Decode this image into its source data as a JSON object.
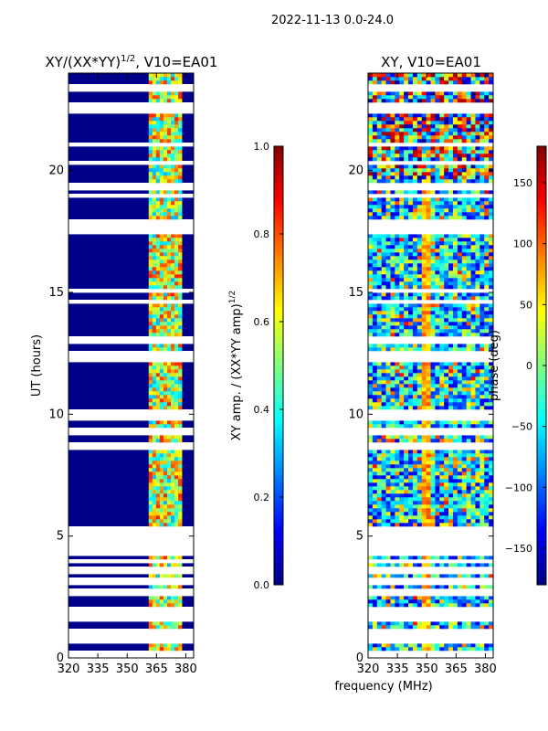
{
  "suptitle": "2022-11-13 0.0-24.0",
  "colors": {
    "jet": [
      "#00007f",
      "#0000ff",
      "#007fff",
      "#00ffff",
      "#7fff7f",
      "#ffff00",
      "#ff7f00",
      "#ff0000",
      "#7f0000"
    ],
    "gap": "#ffffff",
    "background": "#00008a"
  },
  "chart_data": [
    {
      "type": "heatmap",
      "title_main": "XY/(XX*YY)",
      "title_exp": "1/2",
      "title_tail": ", V10=EA01",
      "xlabel": "",
      "ylabel": "UT (hours)",
      "xlim": [
        320,
        384
      ],
      "ylim": [
        0,
        24
      ],
      "xticks": [
        320,
        335,
        350,
        365,
        380
      ],
      "yticks": [
        0,
        5,
        10,
        15,
        20
      ],
      "active_band_mhz": [
        361,
        378
      ],
      "colorbar": {
        "label_main": "XY amp. / (XX*YY amp)",
        "label_exp": "1/2",
        "range": [
          0,
          1
        ],
        "ticks": [
          "0.0",
          "0.2",
          "0.4",
          "0.6",
          "0.8",
          "1.0"
        ],
        "tick_values": [
          0,
          0.2,
          0.4,
          0.6,
          0.8,
          1.0
        ]
      }
    },
    {
      "type": "heatmap",
      "title_main": "XY, V10=EA01",
      "xlabel": "frequency (MHz)",
      "ylabel": "",
      "xlim": [
        320,
        384
      ],
      "ylim": [
        0,
        24
      ],
      "xticks": [
        320,
        335,
        350,
        365,
        380
      ],
      "yticks": [
        0,
        5,
        10,
        15,
        20
      ],
      "colorbar": {
        "label_main": "phase (deg)",
        "range": [
          -180,
          180
        ],
        "ticks": [
          "−150",
          "−100",
          "−50",
          "0",
          "50",
          "100",
          "150"
        ],
        "tick_values": [
          -150,
          -100,
          -50,
          0,
          50,
          100,
          150
        ]
      }
    }
  ]
}
